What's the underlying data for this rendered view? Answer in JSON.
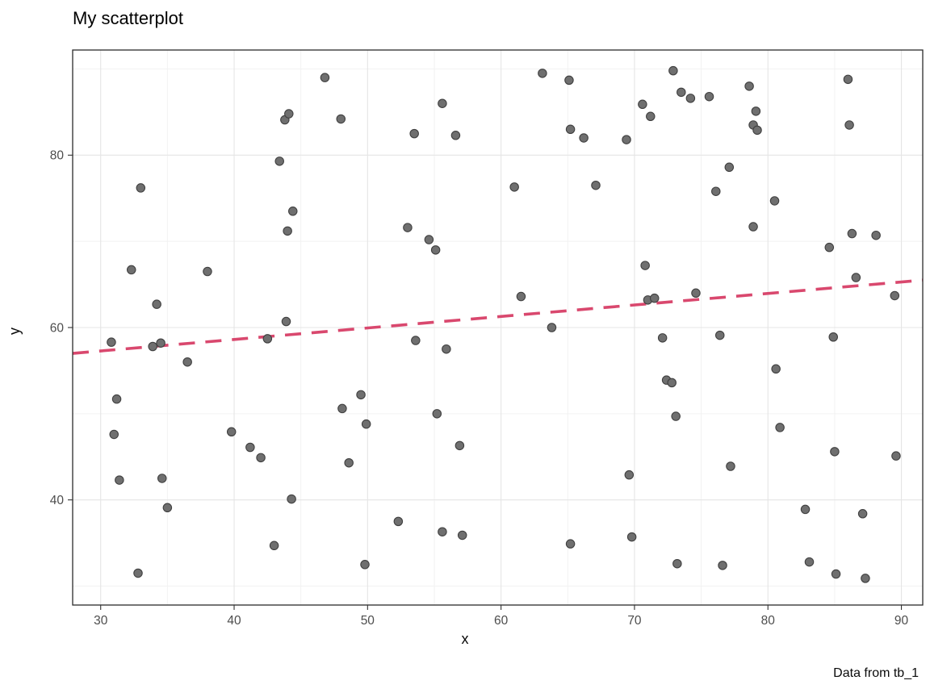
{
  "chart_data": {
    "type": "scatter",
    "title": "My scatterplot",
    "xlabel": "x",
    "ylabel": "y",
    "caption": "Data from tb_1",
    "xlim": [
      27.9,
      91.6
    ],
    "ylim": [
      27.8,
      92.2
    ],
    "x_ticks": [
      30,
      40,
      50,
      60,
      70,
      80,
      90
    ],
    "y_ticks": [
      40,
      60,
      80
    ],
    "x_minor_ticks": [
      35,
      45,
      55,
      65,
      75,
      85
    ],
    "y_minor_ticks": [
      30,
      50,
      70,
      90
    ],
    "grid": true,
    "legend_position": "none",
    "point_color": "#6f6f6f",
    "point_stroke": "#404040",
    "panel_border_color": "#2b2b2b",
    "major_grid_color": "#e5e5e5",
    "minor_grid_color": "#f2f2f2",
    "trend_line": {
      "style": "dashed",
      "color": "#d9486e",
      "x1": 27.9,
      "y1": 57.0,
      "x2": 91.6,
      "y2": 65.5
    },
    "points": [
      [
        30.8,
        58.3
      ],
      [
        31.2,
        51.7
      ],
      [
        31.0,
        47.6
      ],
      [
        31.4,
        42.3
      ],
      [
        32.3,
        66.7
      ],
      [
        32.8,
        31.5
      ],
      [
        33.0,
        76.2
      ],
      [
        33.9,
        57.8
      ],
      [
        34.5,
        58.2
      ],
      [
        34.2,
        62.7
      ],
      [
        34.6,
        42.5
      ],
      [
        35.0,
        39.1
      ],
      [
        36.5,
        56.0
      ],
      [
        38.0,
        66.5
      ],
      [
        39.8,
        47.9
      ],
      [
        41.2,
        46.1
      ],
      [
        42.0,
        44.9
      ],
      [
        42.5,
        58.7
      ],
      [
        43.0,
        34.7
      ],
      [
        43.4,
        79.3
      ],
      [
        43.8,
        84.1
      ],
      [
        44.1,
        84.8
      ],
      [
        43.9,
        60.7
      ],
      [
        44.0,
        71.2
      ],
      [
        44.4,
        73.5
      ],
      [
        44.3,
        40.1
      ],
      [
        46.8,
        89.0
      ],
      [
        48.0,
        84.2
      ],
      [
        48.1,
        50.6
      ],
      [
        48.6,
        44.3
      ],
      [
        49.5,
        52.2
      ],
      [
        49.9,
        48.8
      ],
      [
        49.8,
        32.5
      ],
      [
        52.3,
        37.5
      ],
      [
        53.0,
        71.6
      ],
      [
        53.5,
        82.5
      ],
      [
        53.6,
        58.5
      ],
      [
        54.6,
        70.2
      ],
      [
        55.1,
        69.0
      ],
      [
        55.2,
        50.0
      ],
      [
        55.6,
        86.0
      ],
      [
        55.9,
        57.5
      ],
      [
        55.6,
        36.3
      ],
      [
        56.6,
        82.3
      ],
      [
        56.9,
        46.3
      ],
      [
        57.1,
        35.9
      ],
      [
        61.0,
        76.3
      ],
      [
        61.5,
        63.6
      ],
      [
        63.1,
        89.5
      ],
      [
        63.8,
        60.0
      ],
      [
        65.1,
        88.7
      ],
      [
        65.2,
        83.0
      ],
      [
        65.2,
        34.9
      ],
      [
        66.2,
        82.0
      ],
      [
        67.1,
        76.5
      ],
      [
        69.4,
        81.8
      ],
      [
        69.6,
        42.9
      ],
      [
        69.8,
        35.7
      ],
      [
        70.6,
        85.9
      ],
      [
        70.8,
        67.2
      ],
      [
        71.0,
        63.2
      ],
      [
        71.5,
        63.4
      ],
      [
        71.2,
        84.5
      ],
      [
        72.1,
        58.8
      ],
      [
        72.4,
        53.9
      ],
      [
        72.8,
        53.6
      ],
      [
        72.9,
        89.8
      ],
      [
        73.5,
        87.3
      ],
      [
        73.1,
        49.7
      ],
      [
        73.2,
        32.6
      ],
      [
        74.2,
        86.6
      ],
      [
        74.6,
        64.0
      ],
      [
        75.6,
        86.8
      ],
      [
        76.1,
        75.8
      ],
      [
        76.4,
        59.1
      ],
      [
        76.6,
        32.4
      ],
      [
        77.1,
        78.6
      ],
      [
        77.2,
        43.9
      ],
      [
        78.6,
        88.0
      ],
      [
        78.9,
        83.5
      ],
      [
        79.1,
        85.1
      ],
      [
        79.2,
        82.9
      ],
      [
        78.9,
        71.7
      ],
      [
        80.5,
        74.7
      ],
      [
        80.6,
        55.2
      ],
      [
        80.9,
        48.4
      ],
      [
        82.8,
        38.9
      ],
      [
        83.1,
        32.8
      ],
      [
        84.6,
        69.3
      ],
      [
        84.9,
        58.9
      ],
      [
        85.0,
        45.6
      ],
      [
        85.1,
        31.4
      ],
      [
        86.0,
        88.8
      ],
      [
        86.1,
        83.5
      ],
      [
        86.3,
        70.9
      ],
      [
        86.6,
        65.8
      ],
      [
        87.1,
        38.4
      ],
      [
        87.3,
        30.9
      ],
      [
        88.1,
        70.7
      ],
      [
        89.5,
        63.7
      ],
      [
        89.6,
        45.1
      ]
    ]
  }
}
